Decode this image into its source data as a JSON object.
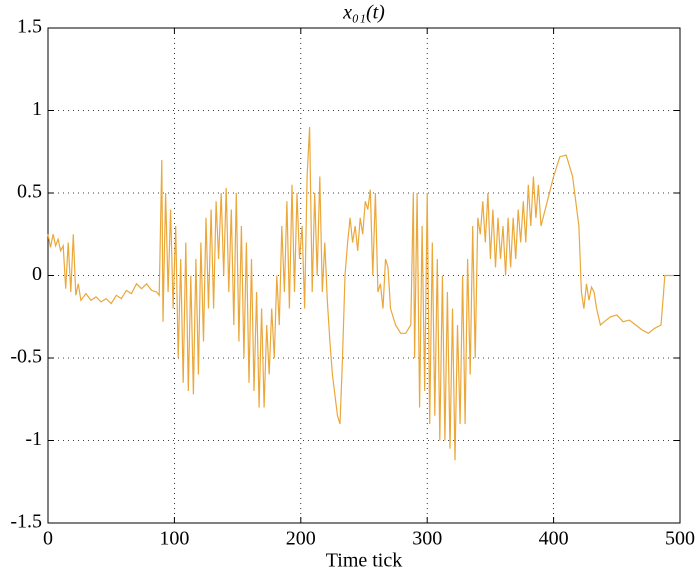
{
  "chart_data": {
    "type": "line",
    "title": "x₀₁(t)",
    "x_label": "Time tick",
    "color": "#eba73a",
    "grid": true,
    "xlim": [
      0,
      500
    ],
    "xticks": [
      0,
      100,
      200,
      300,
      400,
      500
    ],
    "ylim": [
      -1.5,
      1.5
    ],
    "yticks": [
      -1.5,
      -1,
      -0.5,
      0,
      0.5,
      1,
      1.5
    ],
    "x": [
      0,
      2,
      4,
      6,
      8,
      10,
      12,
      14,
      16,
      18,
      20,
      22,
      24,
      26,
      30,
      34,
      38,
      42,
      46,
      50,
      54,
      58,
      62,
      66,
      70,
      74,
      78,
      82,
      86,
      88,
      90,
      91,
      93,
      95,
      97,
      99,
      101,
      103,
      105,
      107,
      109,
      111,
      113,
      115,
      117,
      119,
      121,
      123,
      125,
      127,
      129,
      131,
      133,
      135,
      137,
      139,
      141,
      143,
      145,
      147,
      149,
      151,
      153,
      155,
      157,
      159,
      161,
      163,
      165,
      167,
      169,
      171,
      173,
      175,
      177,
      179,
      181,
      183,
      185,
      187,
      189,
      191,
      193,
      195,
      197,
      199,
      201,
      203,
      205,
      207,
      209,
      211,
      213,
      215,
      217,
      219,
      221,
      223,
      225,
      229,
      231,
      233,
      235,
      237,
      239,
      241,
      243,
      245,
      247,
      249,
      251,
      253,
      255,
      257,
      259,
      261,
      263,
      265,
      267,
      269,
      271,
      275,
      279,
      283,
      287,
      289,
      290,
      292,
      294,
      296,
      298,
      300,
      302,
      304,
      306,
      308,
      310,
      312,
      314,
      316,
      318,
      320,
      322,
      324,
      326,
      328,
      330,
      332,
      334,
      336,
      338,
      340,
      342,
      344,
      346,
      348,
      350,
      352,
      354,
      356,
      358,
      360,
      362,
      364,
      366,
      368,
      370,
      372,
      374,
      376,
      378,
      380,
      382,
      384,
      386,
      388,
      390,
      395,
      400,
      405,
      410,
      415,
      420,
      422,
      424,
      426,
      428,
      430,
      432,
      434,
      437,
      440,
      445,
      450,
      455,
      460,
      465,
      470,
      475,
      480,
      485,
      487,
      488,
      495
    ],
    "values": [
      0.25,
      0.17,
      0.25,
      0.18,
      0.22,
      0.15,
      0.18,
      -0.08,
      0.2,
      -0.1,
      0.25,
      -0.12,
      -0.05,
      -0.15,
      -0.11,
      -0.15,
      -0.13,
      -0.16,
      -0.14,
      -0.17,
      -0.12,
      -0.14,
      -0.09,
      -0.11,
      -0.05,
      -0.08,
      -0.05,
      -0.09,
      -0.1,
      -0.12,
      0.7,
      -0.28,
      0.5,
      -0.1,
      0.4,
      -0.2,
      0.3,
      -0.5,
      0.1,
      -0.65,
      0.2,
      -0.7,
      0.0,
      -0.72,
      0.1,
      -0.6,
      0.2,
      -0.4,
      0.35,
      -0.2,
      0.4,
      -0.2,
      0.45,
      0.1,
      0.5,
      0.0,
      0.53,
      -0.1,
      0.4,
      -0.3,
      0.5,
      -0.4,
      0.3,
      -0.5,
      0.2,
      -0.65,
      0.1,
      -0.7,
      -0.1,
      -0.8,
      -0.2,
      -0.8,
      -0.3,
      -0.6,
      -0.2,
      -0.5,
      0.0,
      -0.3,
      0.3,
      -0.1,
      0.45,
      -0.2,
      0.55,
      -0.1,
      0.5,
      0.1,
      0.3,
      -0.2,
      0.6,
      0.9,
      -0.1,
      0.5,
      0.0,
      0.6,
      -0.1,
      0.2,
      -0.15,
      -0.4,
      -0.6,
      -0.85,
      -0.9,
      -0.5,
      0.0,
      0.2,
      0.35,
      0.2,
      0.3,
      0.15,
      0.35,
      0.25,
      0.45,
      0.4,
      0.52,
      0.0,
      0.5,
      -0.1,
      -0.05,
      -0.2,
      0.1,
      0.05,
      -0.2,
      -0.3,
      -0.35,
      -0.35,
      -0.3,
      0.5,
      -0.5,
      0.5,
      -0.8,
      0.3,
      -0.7,
      0.5,
      -0.9,
      0.2,
      -0.85,
      0.1,
      -1.0,
      0.0,
      -1.0,
      -0.1,
      -1.05,
      -0.2,
      -1.12,
      -0.3,
      -0.9,
      0.0,
      -0.9,
      0.1,
      -0.6,
      0.3,
      -0.5,
      0.35,
      0.25,
      0.45,
      0.2,
      0.5,
      0.1,
      0.4,
      0.05,
      0.35,
      0.1,
      0.3,
      0.0,
      0.35,
      0.05,
      0.35,
      0.1,
      0.4,
      0.2,
      0.45,
      0.2,
      0.55,
      0.3,
      0.6,
      0.35,
      0.55,
      0.3,
      0.45,
      0.6,
      0.72,
      0.73,
      0.6,
      0.3,
      -0.1,
      -0.2,
      -0.05,
      -0.15,
      -0.07,
      -0.1,
      -0.2,
      -0.3,
      -0.28,
      -0.25,
      -0.24,
      -0.28,
      -0.27,
      -0.3,
      -0.33,
      -0.35,
      -0.32,
      -0.3,
      -0.1,
      0.0,
      0.0
    ]
  }
}
